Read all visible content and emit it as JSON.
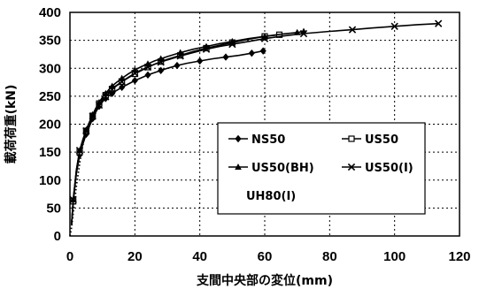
{
  "chart_data": {
    "type": "line",
    "title": "",
    "xlabel": "支間中央部の変位(mm)",
    "ylabel": "載荷荷重(kN)",
    "xlim": [
      0,
      120
    ],
    "ylim": [
      0,
      400
    ],
    "xticks": [
      0,
      20,
      40,
      60,
      80,
      100,
      120
    ],
    "yticks": [
      0,
      50,
      100,
      150,
      200,
      250,
      300,
      350,
      400
    ],
    "grid": true,
    "legend_position": "lower-right-inside",
    "series": [
      {
        "name": "NS50",
        "color": "#000000",
        "marker": "diamond-filled",
        "line": "solid",
        "x": [
          0.5,
          1,
          2,
          3,
          4,
          5,
          6,
          7,
          8,
          9,
          10,
          11,
          12,
          13,
          14,
          16,
          18,
          20,
          22,
          24,
          26,
          28,
          30,
          33,
          36,
          40,
          44,
          48,
          52,
          56,
          59.5
        ],
        "y": [
          20,
          62,
          112,
          145,
          165,
          182,
          196,
          210,
          222,
          232,
          240,
          246,
          251,
          255,
          259,
          266,
          272,
          278,
          283,
          288,
          292,
          296,
          300,
          305,
          309,
          313,
          317,
          320,
          323,
          327,
          331
        ]
      },
      {
        "name": "US50",
        "color": "#000000",
        "marker": "square-open",
        "line": "solid",
        "x": [
          0.5,
          1,
          2,
          3,
          4,
          5,
          6,
          7,
          8,
          9,
          10,
          11,
          12,
          13,
          14,
          16,
          18,
          20,
          22,
          24,
          26,
          28,
          30,
          34,
          38,
          42,
          46,
          50,
          55,
          60,
          64.5
        ],
        "y": [
          20,
          62,
          115,
          150,
          170,
          188,
          202,
          215,
          227,
          237,
          245,
          252,
          258,
          263,
          268,
          276,
          283,
          290,
          296,
          302,
          307,
          312,
          316,
          323,
          330,
          336,
          341,
          346,
          352,
          357,
          360
        ]
      },
      {
        "name": "US50(BH)",
        "color": "#000000",
        "marker": "triangle-filled",
        "line": "solid",
        "x": [
          0.5,
          1,
          2,
          3,
          4,
          5,
          6,
          7,
          8,
          9,
          10,
          11,
          12,
          13,
          14,
          16,
          18,
          20,
          22,
          24,
          26,
          28,
          30,
          34,
          38,
          42,
          46,
          50,
          55,
          60,
          65,
          70,
          72
        ],
        "y": [
          20,
          65,
          118,
          153,
          173,
          190,
          204,
          217,
          229,
          239,
          248,
          255,
          262,
          268,
          273,
          282,
          290,
          297,
          303,
          308,
          313,
          317,
          321,
          328,
          334,
          339,
          344,
          348,
          353,
          357,
          361,
          364,
          366
        ]
      },
      {
        "name": "US50(I)",
        "color": "#000000",
        "marker": "x",
        "line": "solid",
        "x": [
          0.5,
          1,
          2,
          3,
          4,
          5,
          6,
          7,
          8,
          9,
          10,
          11,
          12,
          13,
          14,
          16,
          18,
          20,
          22,
          24,
          26,
          28,
          30,
          34,
          38,
          42,
          46,
          50,
          55,
          60,
          66,
          72,
          80,
          87,
          93,
          100,
          107,
          113.5
        ],
        "y": [
          20,
          65,
          118,
          153,
          172,
          188,
          202,
          214,
          225,
          234,
          242,
          249,
          256,
          262,
          267,
          276,
          284,
          291,
          297,
          302,
          307,
          311,
          315,
          322,
          328,
          334,
          339,
          343,
          348,
          353,
          358,
          362,
          366,
          369,
          372,
          375,
          378,
          380
        ]
      },
      {
        "name": "UH80(I)",
        "color": "#000000",
        "marker": "none",
        "line": "dotted",
        "x": [
          0,
          0.4,
          0.8,
          1.2,
          1.6,
          2,
          2.5,
          3,
          3.5,
          4,
          4.5,
          5,
          6,
          7,
          8,
          9,
          10
        ],
        "y": [
          0,
          12,
          30,
          50,
          70,
          90,
          110,
          130,
          148,
          163,
          176,
          187,
          203,
          215,
          225,
          233,
          240
        ]
      }
    ]
  }
}
